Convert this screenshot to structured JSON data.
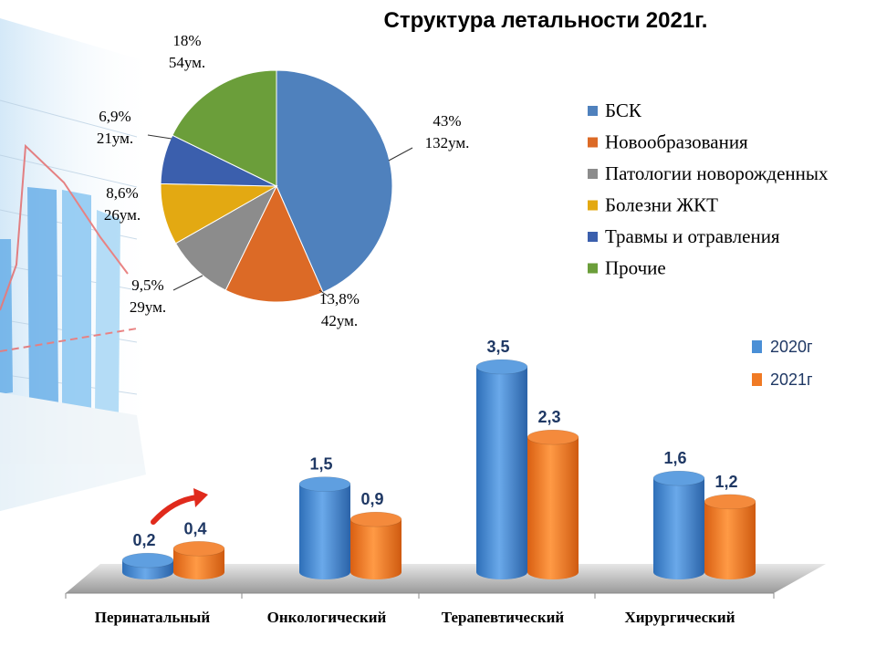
{
  "chart_data": [
    {
      "type": "pie",
      "title": "Структура летальности 2021г.",
      "slices": [
        {
          "name": "БСК",
          "percent_label": "43%",
          "count_label": "132ум.",
          "value": 132,
          "color": "#4f81bd"
        },
        {
          "name": "Новообразования",
          "percent_label": "13,8%",
          "count_label": "42ум.",
          "value": 42,
          "color": "#dc6a26"
        },
        {
          "name": "Патологии новорожденных",
          "percent_label": "9,5%",
          "count_label": "29ум.",
          "value": 29,
          "color": "#8c8c8c"
        },
        {
          "name": "Болезни ЖКТ",
          "percent_label": "8,6%",
          "count_label": "26ум.",
          "value": 26,
          "color": "#e3a912"
        },
        {
          "name": "Травмы и отравления",
          "percent_label": "6,9%",
          "count_label": "21ум.",
          "value": 21,
          "color": "#3b5fad"
        },
        {
          "name": "Прочие",
          "percent_label": "18%",
          "count_label": "54ум.",
          "value": 54,
          "color": "#6b9e3a"
        }
      ],
      "legend": "right"
    },
    {
      "type": "bar",
      "categories": [
        "Перинатальный",
        "Онкологический",
        "Терапевтический",
        "Хирургический"
      ],
      "series": [
        {
          "name": "2020г",
          "values": [
            0.2,
            1.5,
            3.5,
            1.6
          ],
          "labels": [
            "0,2",
            "1,5",
            "3,5",
            "1,6"
          ],
          "color": "#4a8fd6"
        },
        {
          "name": "2021г",
          "values": [
            0.4,
            0.9,
            2.3,
            1.2
          ],
          "labels": [
            "0,4",
            "0,9",
            "2,3",
            "1,2"
          ],
          "color": "#f07a24"
        }
      ],
      "ylim": [
        0,
        3.5
      ],
      "legend": "top-right"
    }
  ]
}
